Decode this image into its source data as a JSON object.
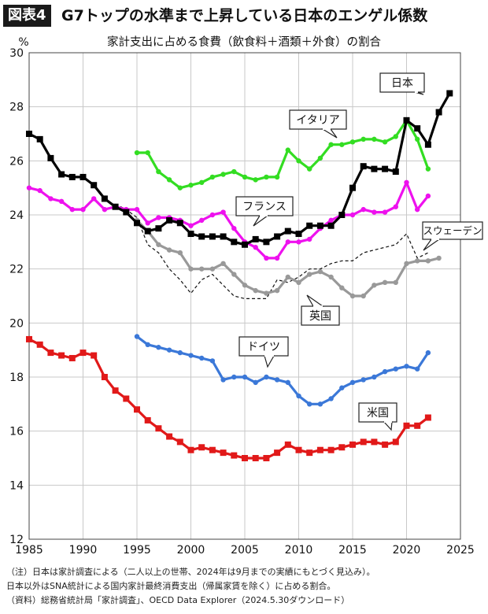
{
  "header": {
    "figure_label": "図表4",
    "title": "G7トップの水準まで上昇している日本のエンゲル係数"
  },
  "chart_data": {
    "type": "line",
    "title": "家計支出に占める食費（飲食料＋酒類＋外食）の割合",
    "ylabel": "%",
    "xlabel": "",
    "xlim": [
      1985,
      2025
    ],
    "ylim": [
      12,
      30
    ],
    "xticks": [
      1985,
      1990,
      1995,
      2000,
      2005,
      2010,
      2015,
      2020,
      2025
    ],
    "yticks": [
      12,
      14,
      16,
      18,
      20,
      22,
      24,
      26,
      28,
      30
    ],
    "grid": true,
    "series": [
      {
        "name": "日本",
        "color": "#000000",
        "marker": "square",
        "style": "solid",
        "x": [
          1985,
          1986,
          1987,
          1988,
          1989,
          1990,
          1991,
          1992,
          1993,
          1994,
          1995,
          1996,
          1997,
          1998,
          1999,
          2000,
          2001,
          2002,
          2003,
          2004,
          2005,
          2006,
          2007,
          2008,
          2009,
          2010,
          2011,
          2012,
          2013,
          2014,
          2015,
          2016,
          2017,
          2018,
          2019,
          2020,
          2021,
          2022,
          2023,
          2024
        ],
        "values": [
          27.0,
          26.8,
          26.1,
          25.5,
          25.4,
          25.4,
          25.1,
          24.6,
          24.3,
          24.1,
          23.7,
          23.4,
          23.5,
          23.8,
          23.7,
          23.3,
          23.2,
          23.2,
          23.2,
          23.0,
          22.9,
          23.1,
          23.0,
          23.2,
          23.4,
          23.3,
          23.6,
          23.6,
          23.6,
          24.0,
          25.0,
          25.8,
          25.7,
          25.7,
          25.6,
          27.5,
          27.2,
          26.6,
          27.8,
          28.5
        ]
      },
      {
        "name": "イタリア",
        "color": "#33dd22",
        "marker": "circle",
        "style": "solid",
        "x": [
          1995,
          1996,
          1997,
          1998,
          1999,
          2000,
          2001,
          2002,
          2003,
          2004,
          2005,
          2006,
          2007,
          2008,
          2009,
          2010,
          2011,
          2012,
          2013,
          2014,
          2015,
          2016,
          2017,
          2018,
          2019,
          2020,
          2021,
          2022
        ],
        "values": [
          26.3,
          26.3,
          25.6,
          25.3,
          25.0,
          25.1,
          25.2,
          25.4,
          25.5,
          25.6,
          25.4,
          25.3,
          25.4,
          25.4,
          26.4,
          26.0,
          25.7,
          26.1,
          26.6,
          26.6,
          26.7,
          26.8,
          26.8,
          26.7,
          26.9,
          27.5,
          26.8,
          25.7
        ]
      },
      {
        "name": "フランス",
        "color": "#ee11ee",
        "marker": "circle",
        "style": "solid",
        "x": [
          1985,
          1986,
          1987,
          1988,
          1989,
          1990,
          1991,
          1992,
          1993,
          1994,
          1995,
          1996,
          1997,
          1998,
          1999,
          2000,
          2001,
          2002,
          2003,
          2004,
          2005,
          2006,
          2007,
          2008,
          2009,
          2010,
          2011,
          2012,
          2013,
          2014,
          2015,
          2016,
          2017,
          2018,
          2019,
          2020,
          2021,
          2022
        ],
        "values": [
          25.0,
          24.9,
          24.6,
          24.5,
          24.2,
          24.2,
          24.6,
          24.2,
          24.3,
          24.2,
          24.2,
          23.7,
          23.9,
          23.9,
          23.8,
          23.6,
          23.8,
          24.0,
          24.1,
          23.5,
          23.0,
          22.8,
          22.4,
          22.4,
          23.0,
          23.0,
          23.1,
          23.5,
          23.8,
          24.0,
          24.0,
          24.2,
          24.1,
          24.1,
          24.3,
          25.2,
          24.2,
          24.7
        ]
      },
      {
        "name": "スウェーデン",
        "color": "#111111",
        "marker": "none",
        "style": "dashed",
        "x": [
          1993,
          1994,
          1995,
          1996,
          1997,
          1998,
          1999,
          2000,
          2001,
          2002,
          2003,
          2004,
          2005,
          2006,
          2007,
          2008,
          2009,
          2010,
          2011,
          2012,
          2013,
          2014,
          2015,
          2016,
          2017,
          2018,
          2019,
          2020,
          2021,
          2022
        ],
        "values": [
          24.4,
          24.2,
          23.9,
          22.9,
          22.6,
          22.0,
          21.6,
          21.1,
          21.6,
          21.8,
          21.4,
          21.0,
          20.9,
          20.9,
          20.9,
          21.6,
          21.5,
          21.7,
          22.0,
          22.0,
          22.2,
          22.3,
          22.3,
          22.6,
          22.7,
          22.8,
          22.9,
          23.3,
          22.4,
          22.6
        ]
      },
      {
        "name": "英国",
        "color": "#999999",
        "marker": "circle",
        "style": "solid",
        "x": [
          1995,
          1996,
          1997,
          1998,
          1999,
          2000,
          2001,
          2002,
          2003,
          2004,
          2005,
          2006,
          2007,
          2008,
          2009,
          2010,
          2011,
          2012,
          2013,
          2014,
          2015,
          2016,
          2017,
          2018,
          2019,
          2020,
          2021,
          2022,
          2023
        ],
        "values": [
          23.8,
          23.4,
          22.9,
          22.7,
          22.6,
          22.0,
          22.0,
          22.0,
          22.2,
          21.8,
          21.4,
          21.2,
          21.1,
          21.2,
          21.7,
          21.5,
          21.8,
          21.9,
          21.7,
          21.3,
          21.0,
          21.0,
          21.4,
          21.5,
          21.5,
          22.2,
          22.3,
          22.3,
          22.4
        ]
      },
      {
        "name": "ドイツ",
        "color": "#3b78d8",
        "marker": "circle",
        "style": "solid",
        "x": [
          1995,
          1996,
          1997,
          1998,
          1999,
          2000,
          2001,
          2002,
          2003,
          2004,
          2005,
          2006,
          2007,
          2008,
          2009,
          2010,
          2011,
          2012,
          2013,
          2014,
          2015,
          2016,
          2017,
          2018,
          2019,
          2020,
          2021,
          2022
        ],
        "values": [
          19.5,
          19.2,
          19.1,
          19.0,
          18.9,
          18.8,
          18.7,
          18.6,
          17.9,
          18.0,
          18.0,
          17.8,
          18.0,
          17.9,
          17.8,
          17.3,
          17.0,
          17.0,
          17.2,
          17.6,
          17.8,
          17.9,
          18.0,
          18.2,
          18.3,
          18.4,
          18.3,
          18.9
        ]
      },
      {
        "name": "米国",
        "color": "#e11919",
        "marker": "square",
        "style": "solid",
        "x": [
          1985,
          1986,
          1987,
          1988,
          1989,
          1990,
          1991,
          1992,
          1993,
          1994,
          1995,
          1996,
          1997,
          1998,
          1999,
          2000,
          2001,
          2002,
          2003,
          2004,
          2005,
          2006,
          2007,
          2008,
          2009,
          2010,
          2011,
          2012,
          2013,
          2014,
          2015,
          2016,
          2017,
          2018,
          2019,
          2020,
          2021,
          2022
        ],
        "values": [
          19.4,
          19.2,
          18.9,
          18.8,
          18.7,
          18.9,
          18.8,
          18.0,
          17.5,
          17.2,
          16.8,
          16.4,
          16.1,
          15.8,
          15.6,
          15.3,
          15.4,
          15.3,
          15.2,
          15.1,
          15.0,
          15.0,
          15.0,
          15.2,
          15.5,
          15.3,
          15.2,
          15.3,
          15.3,
          15.4,
          15.5,
          15.6,
          15.6,
          15.5,
          15.6,
          16.2,
          16.2,
          16.5
        ]
      }
    ],
    "callouts": [
      {
        "series": "日本",
        "text": "日本"
      },
      {
        "series": "イタリア",
        "text": "イタリア"
      },
      {
        "series": "フランス",
        "text": "フランス"
      },
      {
        "series": "スウェーデン",
        "text": "スウェーデン"
      },
      {
        "series": "英国",
        "text": "英国"
      },
      {
        "series": "ドイツ",
        "text": "ドイツ"
      },
      {
        "series": "米国",
        "text": "米国"
      }
    ]
  },
  "notes": [
    "（注）日本は家計調査による（二人以上の世帯、2024年は9月までの実績にもとづく見込み）。",
    "日本以外はSNA統計による国内家計最終消費支出（帰属家賃を除く）に占める割合。",
    "（資料）総務省統計局「家計調査」、OECD Data Explorer（2024.5.30ダウンロード）"
  ]
}
